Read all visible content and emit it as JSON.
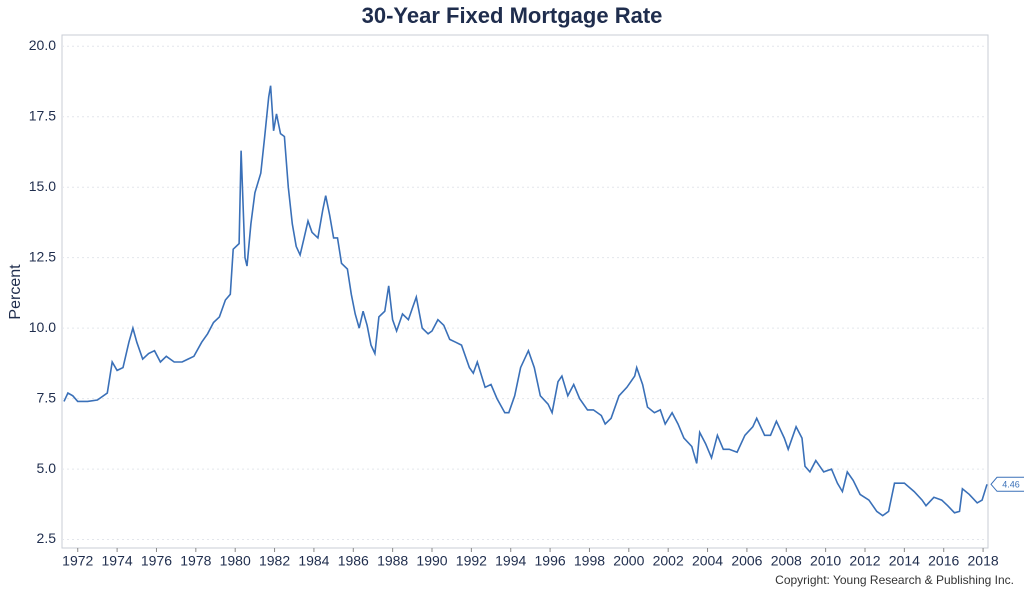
{
  "chart_data": {
    "type": "line",
    "title": "30-Year Fixed Mortgage Rate",
    "y_label": "Percent",
    "source": "Copyright: Young Research & Publishing Inc.",
    "color": "#3a70b8",
    "grid": true,
    "xlim": [
      1971.2,
      2018.25
    ],
    "xticks": [
      1972,
      1974,
      1976,
      1978,
      1980,
      1982,
      1984,
      1986,
      1988,
      1990,
      1992,
      1994,
      1996,
      1998,
      2000,
      2002,
      2004,
      2006,
      2008,
      2010,
      2012,
      2014,
      2016,
      2018
    ],
    "ylim": [
      2.2,
      20.4
    ],
    "yticks": [
      2.5,
      {
        "value": 5,
        "label": "5.0"
      },
      7.5,
      {
        "value": 10,
        "label": "10.0"
      },
      12.5,
      {
        "value": 15,
        "label": "15.0"
      },
      17.5,
      {
        "value": 20,
        "label": "20.0"
      }
    ],
    "x": [
      1971.3,
      1971.5,
      1971.75,
      1972.0,
      1972.5,
      1973.0,
      1973.5,
      1973.75,
      1974.0,
      1974.3,
      1974.6,
      1974.8,
      1975.0,
      1975.3,
      1975.6,
      1975.9,
      1976.2,
      1976.5,
      1976.9,
      1977.3,
      1977.6,
      1977.9,
      1978.3,
      1978.6,
      1978.9,
      1979.2,
      1979.5,
      1979.75,
      1979.9,
      1980.2,
      1980.3,
      1980.5,
      1980.6,
      1980.8,
      1981.0,
      1981.3,
      1981.5,
      1981.7,
      1981.8,
      1981.95,
      1982.1,
      1982.3,
      1982.5,
      1982.7,
      1982.9,
      1983.1,
      1983.3,
      1983.5,
      1983.7,
      1983.9,
      1984.2,
      1984.45,
      1984.6,
      1984.8,
      1985.0,
      1985.2,
      1985.4,
      1985.7,
      1985.9,
      1986.1,
      1986.3,
      1986.5,
      1986.7,
      1986.9,
      1987.1,
      1987.3,
      1987.6,
      1987.8,
      1988.0,
      1988.2,
      1988.5,
      1988.8,
      1989.0,
      1989.2,
      1989.5,
      1989.8,
      1990.0,
      1990.3,
      1990.6,
      1990.9,
      1991.2,
      1991.5,
      1991.9,
      1992.1,
      1992.3,
      1992.7,
      1993.0,
      1993.3,
      1993.7,
      1993.9,
      1994.2,
      1994.5,
      1994.9,
      1995.2,
      1995.5,
      1995.9,
      1996.1,
      1996.4,
      1996.6,
      1996.9,
      1997.2,
      1997.5,
      1997.9,
      1998.2,
      1998.6,
      1998.8,
      1999.1,
      1999.5,
      1999.9,
      2000.3,
      2000.4,
      2000.7,
      2000.95,
      2001.3,
      2001.6,
      2001.85,
      2002.2,
      2002.5,
      2002.8,
      2003.2,
      2003.45,
      2003.6,
      2003.9,
      2004.2,
      2004.5,
      2004.8,
      2005.1,
      2005.5,
      2005.9,
      2006.3,
      2006.5,
      2006.9,
      2007.2,
      2007.5,
      2007.9,
      2008.1,
      2008.5,
      2008.8,
      2008.95,
      2009.2,
      2009.5,
      2009.9,
      2010.3,
      2010.6,
      2010.85,
      2011.1,
      2011.4,
      2011.75,
      2012.2,
      2012.6,
      2012.9,
      2013.2,
      2013.5,
      2013.7,
      2014.0,
      2014.5,
      2014.9,
      2015.1,
      2015.5,
      2015.9,
      2016.2,
      2016.55,
      2016.8,
      2016.95,
      2017.3,
      2017.7,
      2017.95,
      2018.2
    ],
    "values": [
      7.4,
      7.7,
      7.6,
      7.4,
      7.4,
      7.45,
      7.7,
      8.8,
      8.5,
      8.6,
      9.5,
      10.0,
      9.5,
      8.9,
      9.1,
      9.2,
      8.8,
      9.0,
      8.8,
      8.8,
      8.9,
      9.0,
      9.5,
      9.8,
      10.2,
      10.4,
      11.0,
      11.2,
      12.8,
      13.0,
      16.3,
      12.5,
      12.2,
      13.7,
      14.8,
      15.5,
      16.8,
      18.2,
      18.6,
      17.0,
      17.6,
      16.9,
      16.8,
      15.0,
      13.7,
      12.9,
      12.6,
      13.2,
      13.8,
      13.4,
      13.2,
      14.2,
      14.7,
      14.0,
      13.2,
      13.2,
      12.3,
      12.1,
      11.2,
      10.5,
      10.0,
      10.6,
      10.1,
      9.4,
      9.1,
      10.4,
      10.6,
      11.5,
      10.3,
      9.9,
      10.5,
      10.3,
      10.7,
      11.1,
      10.0,
      9.8,
      9.9,
      10.3,
      10.1,
      9.6,
      9.5,
      9.4,
      8.6,
      8.4,
      8.8,
      7.9,
      8.0,
      7.5,
      7.0,
      7.0,
      7.6,
      8.6,
      9.2,
      8.6,
      7.6,
      7.3,
      7.0,
      8.1,
      8.3,
      7.6,
      8.0,
      7.5,
      7.1,
      7.1,
      6.9,
      6.6,
      6.8,
      7.6,
      7.9,
      8.3,
      8.6,
      8.0,
      7.2,
      7.0,
      7.1,
      6.6,
      7.0,
      6.6,
      6.1,
      5.8,
      5.2,
      6.3,
      5.9,
      5.4,
      6.2,
      5.7,
      5.7,
      5.6,
      6.2,
      6.5,
      6.8,
      6.2,
      6.2,
      6.7,
      6.1,
      5.7,
      6.5,
      6.1,
      5.1,
      4.9,
      5.3,
      4.9,
      5.0,
      4.5,
      4.2,
      4.9,
      4.6,
      4.1,
      3.9,
      3.5,
      3.35,
      3.5,
      4.5,
      4.5,
      4.5,
      4.2,
      3.9,
      3.7,
      4.0,
      3.9,
      3.7,
      3.45,
      3.5,
      4.3,
      4.1,
      3.8,
      3.9,
      4.46
    ]
  }
}
